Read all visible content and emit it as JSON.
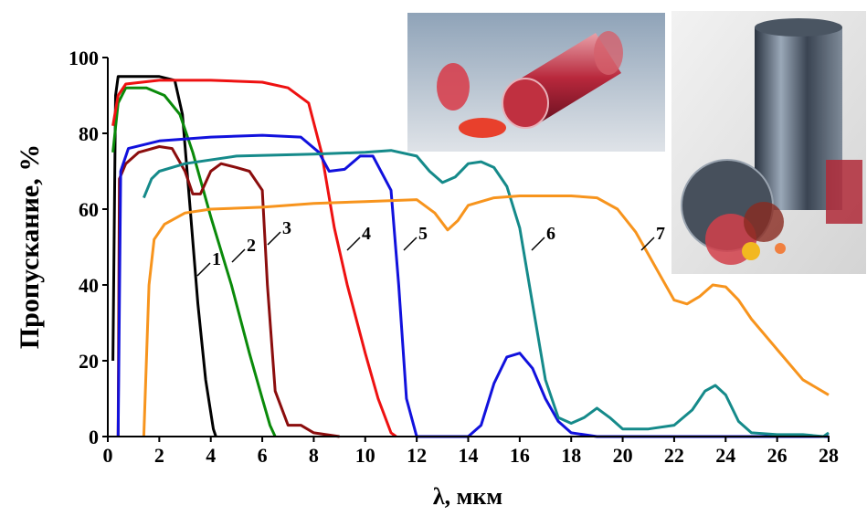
{
  "chart_data": {
    "type": "line",
    "y_label": "Пропускание, %",
    "x_label": "λ, мкм",
    "xlim": [
      0,
      28
    ],
    "xticks": [
      0,
      2,
      4,
      6,
      8,
      10,
      12,
      14,
      16,
      18,
      20,
      22,
      24,
      26,
      28
    ],
    "ylim": [
      0,
      100
    ],
    "yticks": [
      0,
      20,
      40,
      60,
      80,
      100
    ],
    "series": [
      {
        "name": "1",
        "color": "#000000",
        "x": [
          0.2,
          0.3,
          0.4,
          0.6,
          1,
          2,
          2.6,
          2.9,
          3.2,
          3.5,
          3.8,
          4.1,
          4.2
        ],
        "values": [
          20,
          90,
          95,
          95,
          95,
          95,
          94,
          85,
          60,
          35,
          15,
          2,
          0
        ]
      },
      {
        "name": "2",
        "color": "#0a8a0a",
        "x": [
          0.2,
          0.4,
          0.7,
          1.5,
          2.2,
          2.8,
          3.3,
          4,
          4.8,
          5.5,
          6,
          6.3,
          6.5
        ],
        "values": [
          75,
          88,
          92,
          92,
          90,
          85,
          75,
          58,
          40,
          22,
          10,
          3,
          0
        ]
      },
      {
        "name": "3",
        "color": "#8b0d0d",
        "x": [
          0.4,
          0.45,
          0.7,
          1.2,
          2,
          2.5,
          3,
          3.3,
          3.6,
          4,
          4.4,
          5,
          5.5,
          6,
          6.2,
          6.5,
          7,
          7.5,
          8,
          9
        ],
        "values": [
          0,
          68,
          72,
          75,
          76.5,
          76,
          70,
          64,
          64,
          70,
          72,
          71,
          70,
          65,
          40,
          12,
          3,
          3,
          1,
          0
        ]
      },
      {
        "name": "4",
        "color": "#ee1111",
        "x": [
          0.2,
          0.4,
          0.7,
          2,
          4,
          6,
          7,
          7.8,
          8.3,
          8.8,
          9.3,
          10,
          10.5,
          11,
          11.2
        ],
        "values": [
          82,
          90,
          93,
          94,
          94,
          93.5,
          92,
          88,
          75,
          55,
          40,
          22,
          10,
          1,
          0
        ]
      },
      {
        "name": "5",
        "color": "#1111dd",
        "x": [
          0.4,
          0.5,
          0.8,
          2,
          4,
          6,
          7.5,
          8.2,
          8.6,
          9.2,
          9.8,
          10.3,
          11,
          11.3,
          11.6,
          12,
          14,
          14.5,
          15,
          15.5,
          16,
          16.5,
          17,
          17.5,
          18,
          19,
          28
        ],
        "values": [
          0,
          70,
          76,
          78,
          79,
          79.5,
          79,
          75,
          70,
          70.5,
          74,
          74,
          65,
          40,
          10,
          0,
          0,
          3,
          14,
          21,
          22,
          18,
          10,
          4,
          1,
          0,
          0
        ]
      },
      {
        "name": "6",
        "color": "#158a8a",
        "x": [
          1.4,
          1.7,
          2,
          3,
          5,
          8,
          10,
          11,
          12,
          12.5,
          13,
          13.5,
          14,
          14.5,
          15,
          15.5,
          16,
          16.5,
          17,
          17.5,
          18,
          18.5,
          19,
          19.5,
          20,
          21,
          22,
          22.7,
          23.2,
          23.6,
          24,
          24.5,
          25,
          26,
          27,
          27.8,
          28
        ],
        "values": [
          63,
          68,
          70,
          72,
          74,
          74.5,
          75,
          75.5,
          74,
          70,
          67,
          68.5,
          72,
          72.5,
          71,
          66,
          55,
          35,
          15,
          5,
          3.5,
          5,
          7.5,
          5,
          2,
          2,
          3,
          7,
          12,
          13.5,
          11,
          4,
          1,
          0.5,
          0.5,
          0,
          1
        ]
      },
      {
        "name": "7",
        "color": "#f7941d",
        "x": [
          1.4,
          1.6,
          1.8,
          2.2,
          3,
          4,
          6,
          8,
          10,
          12,
          12.7,
          13.2,
          13.6,
          14,
          15,
          16,
          18,
          19,
          19.8,
          20.5,
          21,
          21.5,
          22,
          22.5,
          23,
          23.5,
          24,
          24.5,
          25,
          26,
          27,
          28
        ],
        "values": [
          0,
          40,
          52,
          56,
          59,
          60,
          60.5,
          61.5,
          62,
          62.5,
          59,
          54.5,
          57,
          61,
          63,
          63.5,
          63.5,
          63,
          60,
          54,
          48,
          42,
          36,
          35,
          37,
          40,
          39.5,
          36,
          31,
          23,
          15,
          11
        ]
      }
    ]
  }
}
